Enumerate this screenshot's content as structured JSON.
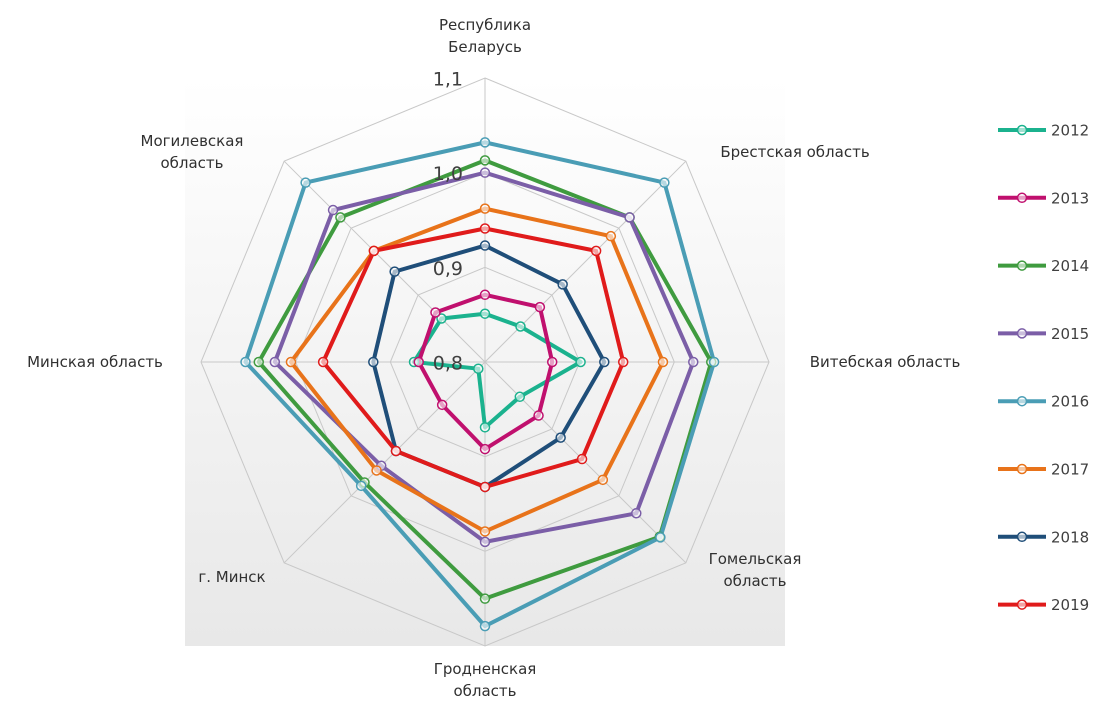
{
  "chart_data": {
    "type": "radar",
    "categories": [
      "Республика Беларусь",
      "Брестская область",
      "Витебская область",
      "Гомельская область",
      "Гродненская область",
      "г. Минск",
      "Минская область",
      "Могилевская область"
    ],
    "rlim": [
      0.8,
      1.1
    ],
    "rticks": [
      {
        "value": 0.8,
        "label": "0,8"
      },
      {
        "value": 0.9,
        "label": "0,9"
      },
      {
        "value": 1.0,
        "label": "1,0"
      },
      {
        "value": 1.1,
        "label": "1,1"
      }
    ],
    "legend": "right",
    "series": [
      {
        "name": "2012",
        "color": "#1bb28e",
        "values": [
          0.851,
          0.853,
          0.901,
          0.852,
          0.869,
          0.81,
          0.875,
          0.865
        ]
      },
      {
        "name": "2013",
        "color": "#c0106e",
        "values": [
          0.871,
          0.882,
          0.871,
          0.88,
          0.892,
          0.864,
          0.87,
          0.874
        ]
      },
      {
        "name": "2014",
        "color": "#3f9b3f",
        "values": [
          1.013,
          1.016,
          1.039,
          1.061,
          1.05,
          0.98,
          1.039,
          1.016
        ]
      },
      {
        "name": "2015",
        "color": "#7b5ea7",
        "values": [
          1.0,
          1.016,
          1.02,
          1.026,
          0.99,
          0.955,
          1.022,
          1.027
        ]
      },
      {
        "name": "2016",
        "color": "#4a9db5",
        "values": [
          1.032,
          1.068,
          1.042,
          1.062,
          1.079,
          0.985,
          1.053,
          1.068
        ]
      },
      {
        "name": "2017",
        "color": "#e8731a",
        "values": [
          0.962,
          0.988,
          0.988,
          0.976,
          0.979,
          0.962,
          1.005,
          0.966
        ]
      },
      {
        "name": "2018",
        "color": "#1f4e79",
        "values": [
          0.923,
          0.916,
          0.926,
          0.913,
          0.932,
          0.933,
          0.918,
          0.935
        ]
      },
      {
        "name": "2019",
        "color": "#e01b1b",
        "values": [
          0.941,
          0.966,
          0.946,
          0.945,
          0.932,
          0.933,
          0.971,
          0.966
        ]
      }
    ]
  }
}
